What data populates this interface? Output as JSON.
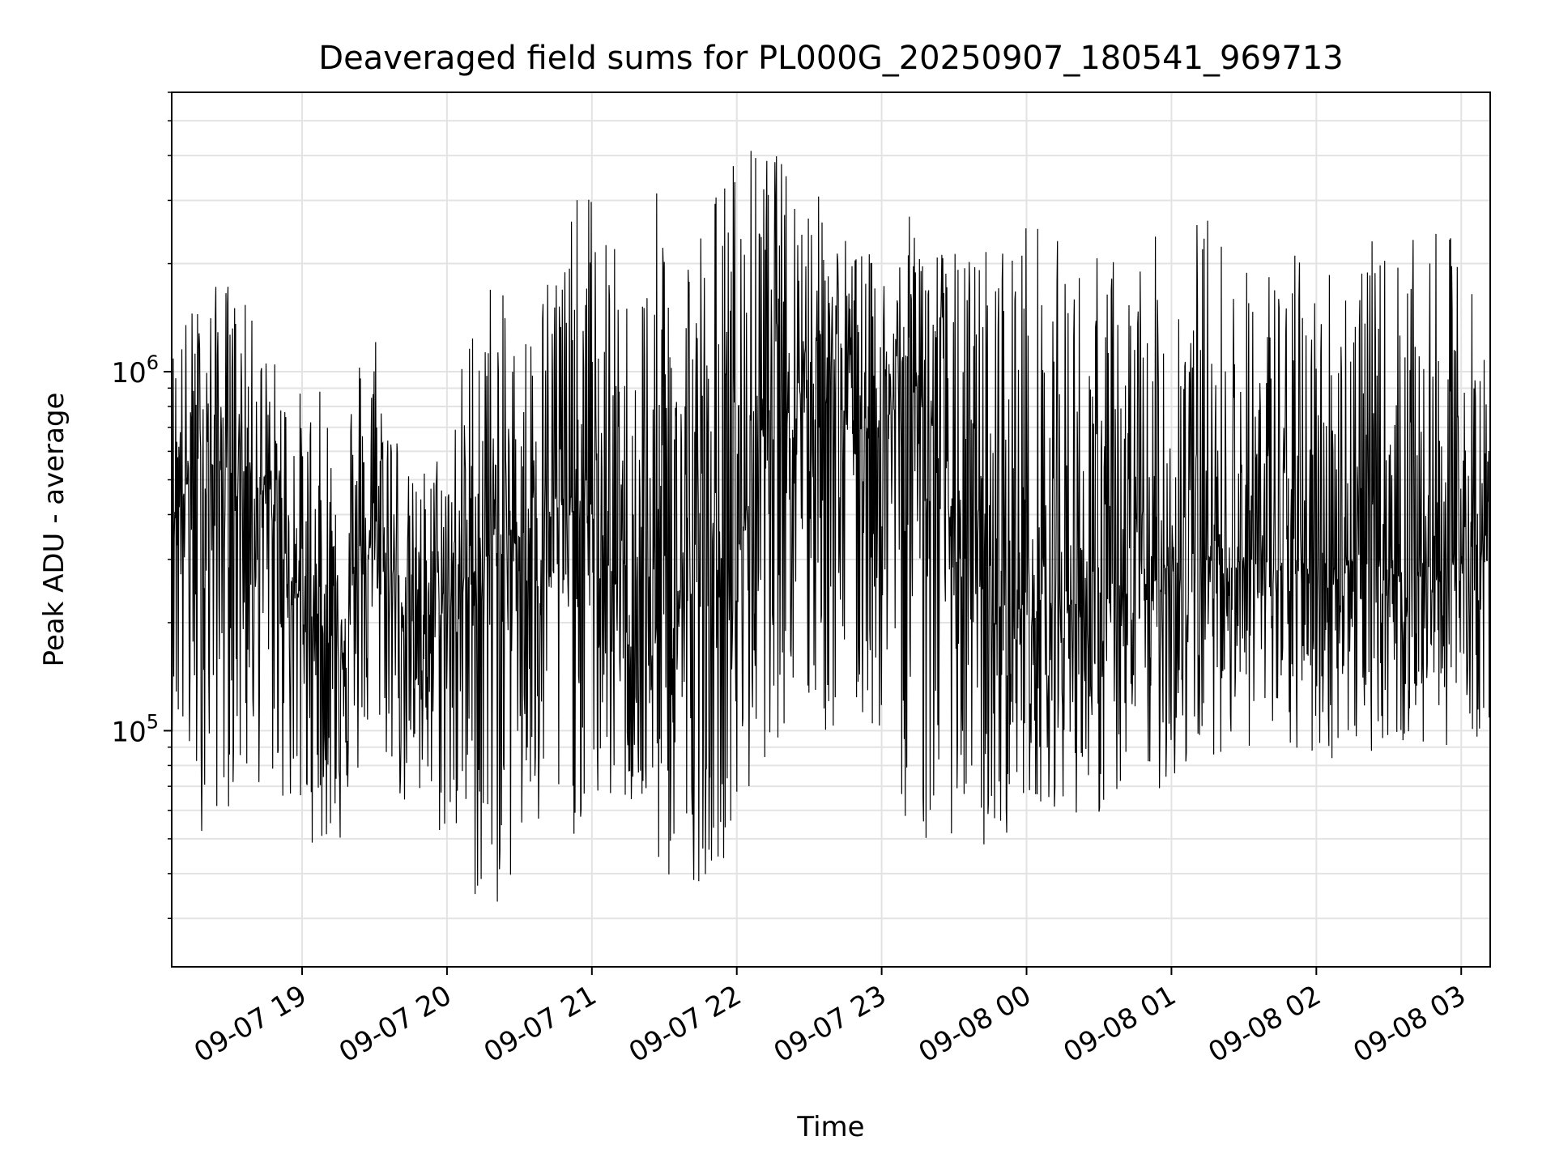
{
  "chart_data": {
    "type": "line",
    "title": "Deaveraged field sums for PL000G_20250907_180541_969713",
    "xlabel": "Time",
    "ylabel": "Peak ADU - average",
    "y_scale": "log",
    "ylim": [
      22000,
      6000000
    ],
    "xlim": [
      "2025-09-07 18:06",
      "2025-09-08 03:12"
    ],
    "grid": true,
    "line_color": "#000000",
    "x_ticks": [
      {
        "at": "2025-09-07 19:00",
        "label": "09-07 19"
      },
      {
        "at": "2025-09-07 20:00",
        "label": "09-07 20"
      },
      {
        "at": "2025-09-07 21:00",
        "label": "09-07 21"
      },
      {
        "at": "2025-09-07 22:00",
        "label": "09-07 22"
      },
      {
        "at": "2025-09-07 23:00",
        "label": "09-07 23"
      },
      {
        "at": "2025-09-08 00:00",
        "label": "09-08 00"
      },
      {
        "at": "2025-09-08 01:00",
        "label": "09-08 01"
      },
      {
        "at": "2025-09-08 02:00",
        "label": "09-08 02"
      },
      {
        "at": "2025-09-08 03:00",
        "label": "09-08 03"
      }
    ],
    "y_ticks": [
      {
        "value": 100000,
        "base": "10",
        "exp": "5"
      },
      {
        "value": 1000000,
        "base": "10",
        "exp": "6"
      }
    ],
    "series": [
      {
        "x": [
          "2025-09-07 18:06",
          "2025-09-07 18:15",
          "2025-09-07 18:30",
          "2025-09-07 18:45",
          "2025-09-07 19:00",
          "2025-09-07 19:15",
          "2025-09-07 19:30",
          "2025-09-07 19:45",
          "2025-09-07 20:00",
          "2025-09-07 20:15",
          "2025-09-07 20:30",
          "2025-09-07 20:45",
          "2025-09-07 21:00",
          "2025-09-07 21:15",
          "2025-09-07 21:30",
          "2025-09-07 21:45",
          "2025-09-07 22:00",
          "2025-09-07 22:15",
          "2025-09-07 22:30",
          "2025-09-07 22:45",
          "2025-09-07 23:00",
          "2025-09-07 23:15",
          "2025-09-07 23:30",
          "2025-09-07 23:45",
          "2025-09-08 00:00",
          "2025-09-08 00:15",
          "2025-09-08 00:30",
          "2025-09-08 00:45",
          "2025-09-08 01:00",
          "2025-09-08 01:15",
          "2025-09-08 01:30",
          "2025-09-08 01:45",
          "2025-09-08 02:00",
          "2025-09-08 02:15",
          "2025-09-08 02:30",
          "2025-09-08 02:45",
          "2025-09-08 03:00",
          "2025-09-08 03:12"
        ],
        "median": [
          450000,
          500000,
          550000,
          450000,
          220000,
          180000,
          350000,
          200000,
          220000,
          300000,
          350000,
          420000,
          400000,
          200000,
          220000,
          250000,
          300000,
          1000000,
          1000000,
          800000,
          700000,
          950000,
          350000,
          220000,
          220000,
          230000,
          220000,
          220000,
          300000,
          300000,
          300000,
          280000,
          280000,
          300000,
          280000,
          280000,
          300000,
          300000
        ],
        "upper": [
          1300000,
          1600000,
          1900000,
          1200000,
          900000,
          900000,
          1600000,
          500000,
          700000,
          2200000,
          1300000,
          2500000,
          3500000,
          1800000,
          3700000,
          3000000,
          4600000,
          4200000,
          3500000,
          2500000,
          2000000,
          3000000,
          2200000,
          2500000,
          3000000,
          2300000,
          2200000,
          2300000,
          2500000,
          3000000,
          2000000,
          2300000,
          2100000,
          2500000,
          2200000,
          2400000,
          2500000,
          1000000
        ],
        "lower": [
          100000,
          50000,
          60000,
          70000,
          50000,
          45000,
          100000,
          50000,
          48000,
          28000,
          37000,
          45000,
          55000,
          60000,
          35000,
          38000,
          48000,
          95000,
          90000,
          90000,
          95000,
          42000,
          52000,
          42000,
          65000,
          60000,
          56000,
          70000,
          66000,
          85000,
          90000,
          80000,
          80000,
          85000,
          90000,
          85000,
          95000,
          95000
        ]
      }
    ]
  }
}
